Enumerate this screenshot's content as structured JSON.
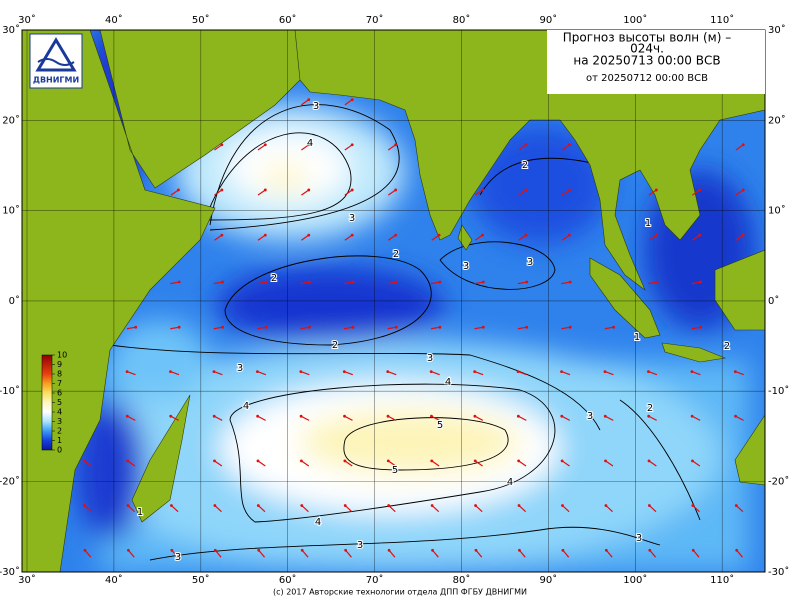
{
  "logo_text": "ДВНИГМИ",
  "title": {
    "line1": "Прогноз высоты волн (м) –",
    "line2": "024ч.",
    "line3": "на 20250713 00:00 ВСВ",
    "line4": "от 20250712 00:00 ВСВ"
  },
  "map": {
    "lon_ticks": [
      {
        "value": 30,
        "label": "30˚"
      },
      {
        "value": 40,
        "label": "40˚"
      },
      {
        "value": 50,
        "label": "50˚"
      },
      {
        "value": 60,
        "label": "60˚"
      },
      {
        "value": 70,
        "label": "70˚"
      },
      {
        "value": 80,
        "label": "80˚"
      },
      {
        "value": 90,
        "label": "90˚"
      },
      {
        "value": 100,
        "label": "100˚"
      },
      {
        "value": 110,
        "label": "110˚"
      }
    ],
    "lat_ticks": [
      {
        "value": 30,
        "label": "30˚"
      },
      {
        "value": 20,
        "label": "20˚"
      },
      {
        "value": 10,
        "label": "10˚"
      },
      {
        "value": 0,
        "label": "0˚"
      },
      {
        "value": -10,
        "label": "-10˚"
      },
      {
        "value": -20,
        "label": "-20˚"
      },
      {
        "value": -30,
        "label": "-30˚"
      }
    ],
    "colorbar_ticks": [
      0,
      1,
      2,
      3,
      4,
      5,
      6,
      7,
      8,
      9,
      10
    ],
    "contour_labels": [
      3,
      4,
      3,
      2,
      1,
      2,
      2,
      3,
      3,
      2,
      3,
      3,
      1,
      2,
      4,
      4,
      5,
      5,
      4,
      4,
      3,
      3,
      3,
      2,
      3,
      1
    ]
  },
  "footer": "(c) 2017 Авторские технологии отдела ДПП ФГБУ ДВНИГМИ"
}
